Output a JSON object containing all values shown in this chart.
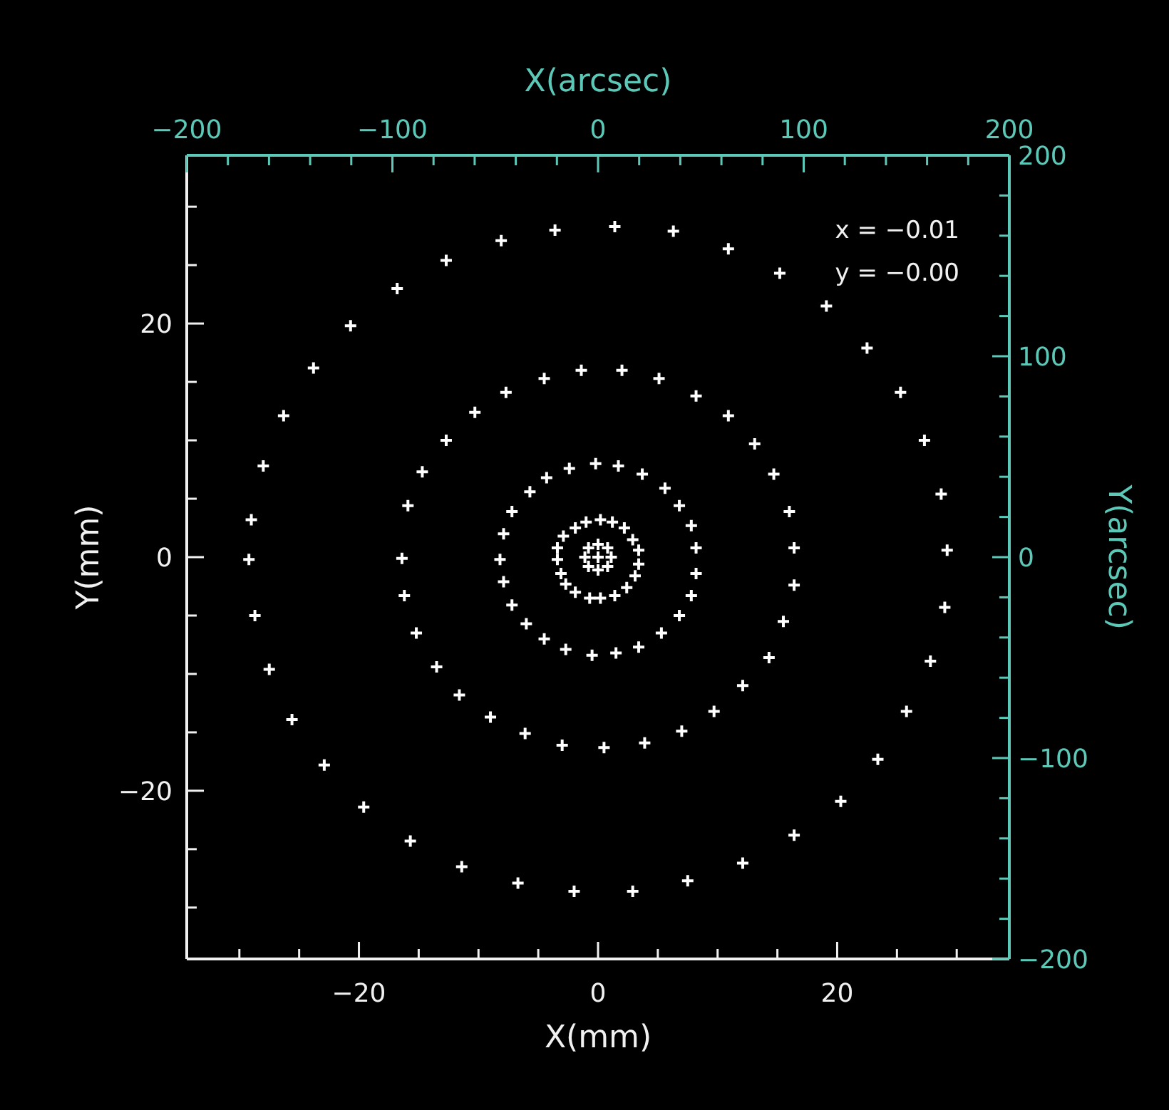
{
  "chart_data": {
    "type": "scatter",
    "xlabel": "X(mm)",
    "ylabel": "Y(mm)",
    "x2label": "X(arcsec)",
    "y2label": "Y(arcsec)",
    "xlim": [
      -34.4,
      34.4
    ],
    "ylim": [
      -34.4,
      34.4
    ],
    "x2lim": [
      -200,
      200
    ],
    "y2lim": [
      -200,
      200
    ],
    "xticks": [
      {
        "value": -30,
        "label": null
      },
      {
        "value": -25,
        "label": null
      },
      -20,
      {
        "value": -15,
        "label": null
      },
      {
        "value": -10,
        "label": null
      },
      {
        "value": -5,
        "label": null
      },
      0,
      {
        "value": 5,
        "label": null
      },
      {
        "value": 10,
        "label": null
      },
      {
        "value": 15,
        "label": null
      },
      20,
      {
        "value": 25,
        "label": null
      },
      {
        "value": 30,
        "label": null
      }
    ],
    "yticks": [
      {
        "value": -30,
        "label": null
      },
      {
        "value": -25,
        "label": null
      },
      -20,
      {
        "value": -15,
        "label": null
      },
      {
        "value": -10,
        "label": null
      },
      {
        "value": -5,
        "label": null
      },
      0,
      {
        "value": 5,
        "label": null
      },
      {
        "value": 10,
        "label": null
      },
      {
        "value": 15,
        "label": null
      },
      20,
      {
        "value": 25,
        "label": null
      },
      {
        "value": 30,
        "label": null
      }
    ],
    "x2ticks": [
      -200,
      {
        "value": -180,
        "label": null
      },
      {
        "value": -160,
        "label": null
      },
      {
        "value": -140,
        "label": null
      },
      {
        "value": -120,
        "label": null
      },
      -100,
      {
        "value": -80,
        "label": null
      },
      {
        "value": -60,
        "label": null
      },
      {
        "value": -40,
        "label": null
      },
      {
        "value": -20,
        "label": null
      },
      0,
      {
        "value": 20,
        "label": null
      },
      {
        "value": 40,
        "label": null
      },
      {
        "value": 60,
        "label": null
      },
      {
        "value": 80,
        "label": null
      },
      100,
      {
        "value": 120,
        "label": null
      },
      {
        "value": 140,
        "label": null
      },
      {
        "value": 160,
        "label": null
      },
      {
        "value": 180,
        "label": null
      },
      200
    ],
    "y2ticks": [
      -200,
      {
        "value": -180,
        "label": null
      },
      {
        "value": -160,
        "label": null
      },
      {
        "value": -140,
        "label": null
      },
      {
        "value": -120,
        "label": null
      },
      -100,
      {
        "value": -80,
        "label": null
      },
      {
        "value": -60,
        "label": null
      },
      {
        "value": -40,
        "label": null
      },
      {
        "value": -20,
        "label": null
      },
      0,
      {
        "value": 20,
        "label": null
      },
      {
        "value": 40,
        "label": null
      },
      {
        "value": 60,
        "label": null
      },
      {
        "value": 80,
        "label": null
      },
      100,
      {
        "value": 120,
        "label": null
      },
      {
        "value": 140,
        "label": null
      },
      {
        "value": 160,
        "label": null
      },
      {
        "value": 180,
        "label": null
      },
      200
    ],
    "grid": false,
    "marker": "cross",
    "annotations": [
      "x = −0.01",
      "y = −0.00"
    ],
    "series": [
      {
        "color": "#ffffff",
        "x": [
          -3.6,
          -8.1,
          -12.7,
          -16.8,
          -20.7,
          -23.8,
          -26.3,
          -28.0,
          -29.0,
          -29.2,
          -28.7,
          -27.5,
          -25.6,
          -22.9,
          -19.6,
          -15.7,
          -11.4,
          -6.7,
          -2.0,
          2.9,
          7.5,
          12.1,
          16.4,
          20.3,
          23.4,
          25.8,
          27.8,
          29.0,
          29.2,
          28.7,
          27.3,
          25.3,
          22.5,
          19.1,
          15.2,
          10.9,
          6.3,
          1.4,
          -1.4,
          -4.5,
          -7.7,
          -10.3,
          -12.7,
          -14.7,
          -15.9,
          -16.4,
          -16.2,
          -15.2,
          -13.5,
          -11.6,
          -9.0,
          -6.1,
          -3.0,
          0.5,
          3.9,
          7.0,
          9.7,
          12.1,
          14.3,
          15.5,
          16.4,
          16.4,
          16.0,
          14.7,
          13.1,
          10.9,
          8.2,
          5.1,
          2.0,
          -0.2,
          -2.4,
          -4.3,
          -5.7,
          -7.2,
          -7.9,
          -8.2,
          -7.9,
          -7.2,
          -6.0,
          -4.5,
          -2.7,
          -0.5,
          1.5,
          3.4,
          5.3,
          6.8,
          7.8,
          8.2,
          8.2,
          7.8,
          6.8,
          5.6,
          3.7,
          1.7,
          0.2,
          1.2,
          2.2,
          2.9,
          3.4,
          3.4,
          3.1,
          2.4,
          1.4,
          0.2,
          -0.7,
          -1.9,
          -2.7,
          -3.1,
          -3.4,
          -3.4,
          -2.9,
          -1.9,
          -1.0,
          0,
          0.8,
          1.1,
          0.8,
          0,
          -0.8,
          -1.1,
          -0.8,
          0
        ],
        "values": [
          28.0,
          27.1,
          25.4,
          23.0,
          19.8,
          16.2,
          12.1,
          7.8,
          3.2,
          -0.2,
          -5.0,
          -9.6,
          -13.9,
          -17.8,
          -21.4,
          -24.3,
          -26.5,
          -27.9,
          -28.6,
          -28.6,
          -27.7,
          -26.2,
          -23.8,
          -20.9,
          -17.3,
          -13.2,
          -8.9,
          -4.3,
          0.6,
          5.4,
          10.0,
          14.1,
          17.9,
          21.5,
          24.3,
          26.4,
          27.9,
          28.3,
          16.0,
          15.3,
          14.1,
          12.4,
          10.0,
          7.3,
          4.4,
          -0.1,
          -3.3,
          -6.5,
          -9.4,
          -11.8,
          -13.7,
          -15.1,
          -16.1,
          -16.3,
          -15.9,
          -14.9,
          -13.2,
          -11.0,
          -8.6,
          -5.5,
          -2.4,
          0.8,
          3.9,
          7.1,
          9.7,
          12.1,
          13.8,
          15.3,
          16.0,
          8.0,
          7.6,
          6.8,
          5.6,
          3.9,
          2.0,
          -0.2,
          -2.1,
          -4.1,
          -5.7,
          -7.0,
          -7.9,
          -8.4,
          -8.2,
          -7.7,
          -6.5,
          -5.0,
          -3.3,
          -1.4,
          0.8,
          2.7,
          4.4,
          5.9,
          7.1,
          7.8,
          3.2,
          3.0,
          2.5,
          1.5,
          0.6,
          -0.6,
          -1.6,
          -2.6,
          -3.3,
          -3.5,
          -3.5,
          -3.0,
          -2.3,
          -1.4,
          -0.2,
          0.8,
          1.8,
          2.5,
          3.0,
          1.1,
          0.8,
          0,
          -0.8,
          -1.1,
          -0.8,
          0,
          0.8,
          0
        ]
      }
    ]
  }
}
